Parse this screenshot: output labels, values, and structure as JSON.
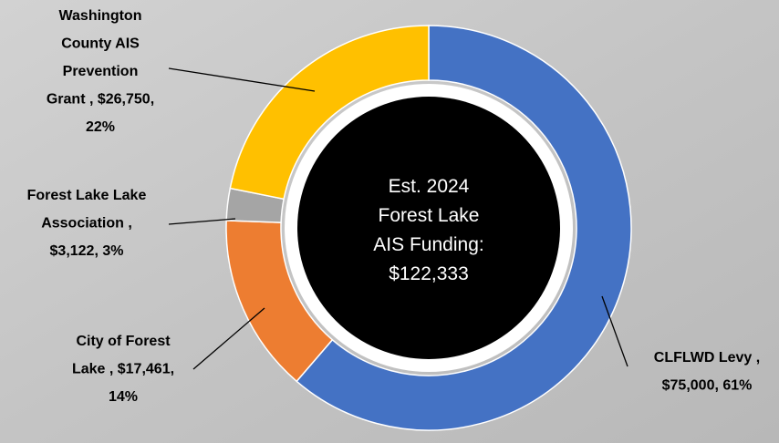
{
  "chart_data": {
    "type": "pie",
    "values": [
      75000,
      17461,
      3122,
      26750
    ],
    "colors": [
      "#4472c4",
      "#ed7d31",
      "#a5a5a5",
      "#ffc000"
    ],
    "labels": [
      [
        "CLFLWD Levy ,",
        "$75,000, 61%"
      ],
      [
        "City of Forest",
        "Lake , $17,461,",
        "14%"
      ],
      [
        "Forest Lake Lake",
        "Association ,",
        "$3,122, 3%"
      ],
      [
        "Washington",
        "County AIS",
        "Prevention",
        "Grant , $26,750,",
        "22%"
      ]
    ],
    "center_text": [
      "Est. 2024",
      "Forest Lake",
      "AIS Funding:",
      "$122,333"
    ]
  }
}
